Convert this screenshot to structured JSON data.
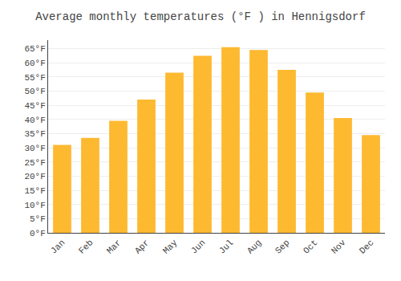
{
  "chart_data": {
    "type": "bar",
    "title": "Average monthly temperatures (°F ) in Hennigsdorf",
    "categories": [
      "Jan",
      "Feb",
      "Mar",
      "Apr",
      "May",
      "Jun",
      "Jul",
      "Aug",
      "Sep",
      "Oct",
      "Nov",
      "Dec"
    ],
    "values": [
      31.0,
      33.5,
      39.5,
      47.0,
      56.5,
      62.5,
      65.5,
      64.5,
      57.5,
      49.5,
      40.5,
      34.5
    ],
    "color": "#FDB930",
    "ylim": [
      0,
      68
    ],
    "yticks": [
      {
        "value": 0,
        "label": "0°F"
      },
      {
        "value": 5,
        "label": "5°F"
      },
      {
        "value": 10,
        "label": "10°F"
      },
      {
        "value": 15,
        "label": "15°F"
      },
      {
        "value": 20,
        "label": "20°F"
      },
      {
        "value": 25,
        "label": "25°F"
      },
      {
        "value": 30,
        "label": "30°F"
      },
      {
        "value": 35,
        "label": "35°F"
      },
      {
        "value": 40,
        "label": "40°F"
      },
      {
        "value": 45,
        "label": "45°F"
      },
      {
        "value": 50,
        "label": "50°F"
      },
      {
        "value": 55,
        "label": "55°F"
      },
      {
        "value": 60,
        "label": "60°F"
      },
      {
        "value": 65,
        "label": "65°F"
      }
    ],
    "grid": true
  }
}
